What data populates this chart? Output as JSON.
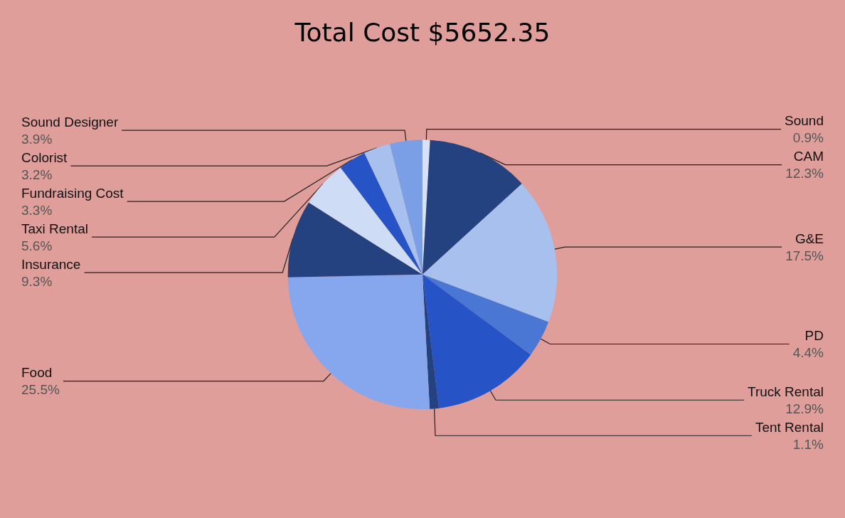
{
  "chart_data": {
    "type": "pie",
    "title": "Total Cost $5652.35",
    "categories": [
      "Sound",
      "CAM",
      "G&E",
      "PD",
      "Truck Rental",
      "Tent Rental",
      "Food",
      "Insurance",
      "Taxi Rental",
      "Fundraising Cost",
      "Colorist",
      "Sound Designer"
    ],
    "values": [
      0.9,
      12.3,
      17.5,
      4.4,
      12.9,
      1.1,
      25.5,
      9.3,
      5.6,
      3.3,
      3.2,
      3.9
    ],
    "value_labels": [
      "0.9%",
      "12.3%",
      "17.5%",
      "4.4%",
      "12.9%",
      "1.1%",
      "25.5%",
      "9.3%",
      "5.6%",
      "3.3%",
      "3.2%",
      "3.9%"
    ],
    "colors": [
      "#d6e2f8",
      "#23427f",
      "#a8c0ee",
      "#4a77d4",
      "#2653c6",
      "#23427f",
      "#86a6ee",
      "#23427f",
      "#cfdcf6",
      "#2653c6",
      "#a8c0ee",
      "#7b9fe6"
    ],
    "legend": false
  }
}
